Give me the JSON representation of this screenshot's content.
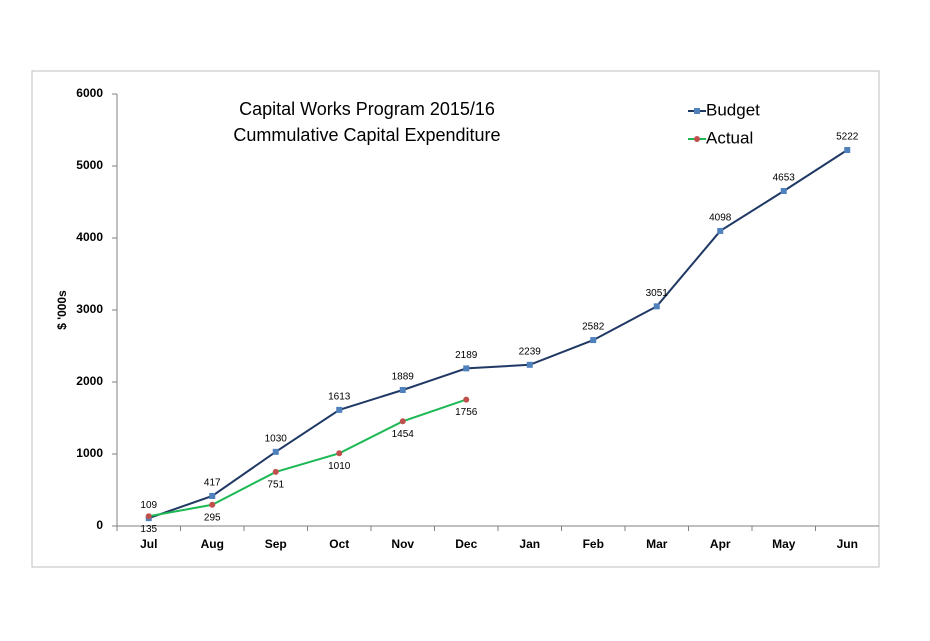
{
  "chart_data": {
    "type": "line",
    "title": "Capital Works Program 2015/16",
    "subtitle": "Cummulative Capital Expenditure",
    "y_label": "$ '000s",
    "categories": [
      "Jul",
      "Aug",
      "Sep",
      "Oct",
      "Nov",
      "Dec",
      "Jan",
      "Feb",
      "Mar",
      "Apr",
      "May",
      "Jun"
    ],
    "series": [
      {
        "name": "Budget",
        "color": "#1f3864",
        "marker_color": "#4f81bd",
        "marker": "square",
        "label_position": "above",
        "values": [
          109,
          417,
          1030,
          1613,
          1889,
          2189,
          2239,
          2582,
          3051,
          4098,
          4653,
          5222
        ]
      },
      {
        "name": "Actual",
        "color": "#1db954",
        "marker_color": "#c0504d",
        "marker": "circle",
        "label_position": "below",
        "values": [
          135,
          295,
          751,
          1010,
          1454,
          1756,
          null,
          null,
          null,
          null,
          null,
          null
        ]
      }
    ],
    "ylim": [
      0,
      6000
    ],
    "yticks": [
      0,
      1000,
      2000,
      3000,
      4000,
      5000,
      6000
    ],
    "grid": false,
    "legend": "top-right"
  }
}
